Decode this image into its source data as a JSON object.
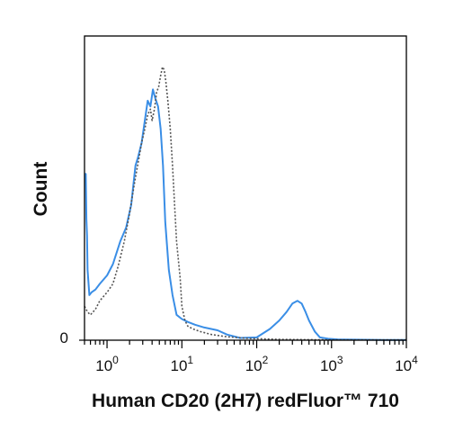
{
  "chart_data": {
    "type": "line",
    "title": "",
    "xlabel": "Human CD20 (2H7) redFluor™ 710",
    "ylabel": "Count",
    "xscale": "log",
    "xlim": [
      0.5,
      10000
    ],
    "ylim": [
      0,
      1
    ],
    "x_ticks": [
      {
        "base": "10",
        "exp": "0"
      },
      {
        "base": "10",
        "exp": "1"
      },
      {
        "base": "10",
        "exp": "2"
      },
      {
        "base": "10",
        "exp": "3"
      },
      {
        "base": "10",
        "exp": "4"
      }
    ],
    "y_ticks": [
      "0"
    ],
    "grid": false,
    "legend": "none",
    "series": [
      {
        "style": "solid",
        "color": "#3a8ee6",
        "x": [
          0.5,
          0.52,
          0.53,
          0.54,
          0.55,
          0.58,
          0.62,
          0.7,
          0.8,
          1.0,
          1.2,
          1.5,
          1.8,
          2.1,
          2.4,
          2.6,
          2.9,
          3.2,
          3.5,
          3.8,
          4.1,
          4.4,
          4.8,
          5.2,
          5.6,
          6.0,
          6.7,
          7.5,
          8.5,
          10,
          12,
          15,
          20,
          30,
          40,
          60,
          100,
          150,
          200,
          250,
          300,
          350,
          400,
          450,
          500,
          600,
          700,
          900,
          1200,
          2000,
          5000,
          10000
        ],
        "y": [
          0.59,
          0.59,
          0.43,
          0.37,
          0.25,
          0.16,
          0.17,
          0.18,
          0.2,
          0.23,
          0.27,
          0.35,
          0.4,
          0.48,
          0.62,
          0.65,
          0.7,
          0.78,
          0.85,
          0.83,
          0.89,
          0.86,
          0.83,
          0.75,
          0.62,
          0.42,
          0.25,
          0.16,
          0.09,
          0.075,
          0.065,
          0.055,
          0.045,
          0.035,
          0.02,
          0.008,
          0.01,
          0.04,
          0.07,
          0.1,
          0.13,
          0.14,
          0.13,
          0.1,
          0.07,
          0.03,
          0.01,
          0.005,
          0.003,
          0.002,
          0.001,
          0.001
        ]
      },
      {
        "style": "dotted",
        "color": "#555555",
        "x": [
          0.5,
          0.55,
          0.6,
          0.7,
          0.8,
          1.0,
          1.2,
          1.4,
          1.7,
          2.0,
          2.3,
          2.6,
          2.9,
          3.2,
          3.5,
          3.8,
          4.0,
          4.3,
          4.6,
          4.9,
          5.2,
          5.5,
          5.8,
          6.1,
          6.5,
          7.0,
          7.5,
          8.0,
          8.5,
          9.5,
          10,
          11,
          12,
          14,
          18,
          25,
          40,
          80,
          200,
          1000,
          10000
        ],
        "y": [
          0.12,
          0.1,
          0.09,
          0.11,
          0.14,
          0.17,
          0.2,
          0.26,
          0.35,
          0.45,
          0.55,
          0.63,
          0.7,
          0.75,
          0.8,
          0.82,
          0.78,
          0.82,
          0.88,
          0.9,
          0.94,
          0.97,
          0.96,
          0.92,
          0.85,
          0.75,
          0.62,
          0.48,
          0.35,
          0.22,
          0.12,
          0.07,
          0.05,
          0.04,
          0.03,
          0.02,
          0.012,
          0.006,
          0.003,
          0.001,
          0.001
        ]
      }
    ]
  }
}
